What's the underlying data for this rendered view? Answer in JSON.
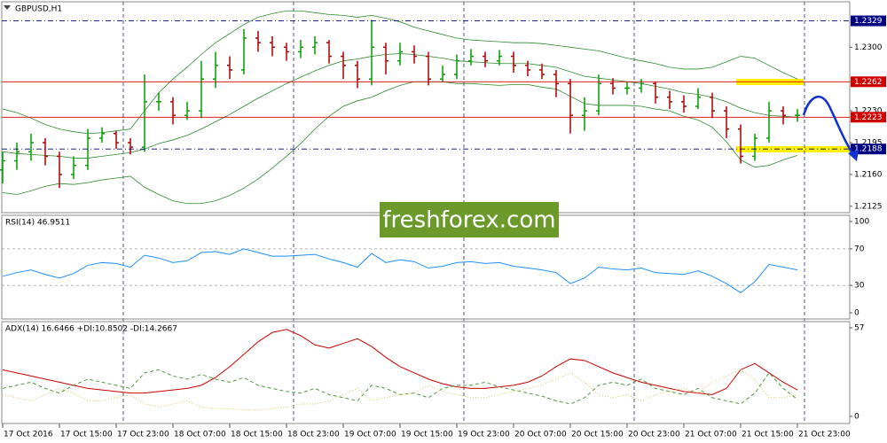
{
  "chart_data": [
    {
      "type": "candlestick",
      "title": "GBPUSD,H1",
      "categories": [
        "17 Oct 2016",
        null,
        null,
        null,
        "17 Oct 15:00",
        null,
        null,
        null,
        "17 Oct 23:00",
        null,
        null,
        null,
        "18 Oct 07:00",
        null,
        null,
        null,
        "18 Oct 15:00",
        null,
        null,
        null,
        "18 Oct 23:00",
        null,
        null,
        null,
        "19 Oct 07:00",
        null,
        null,
        null,
        "19 Oct 15:00",
        null,
        null,
        null,
        "19 Oct 23:00",
        null,
        null,
        null,
        "20 Oct 07:00",
        null,
        null,
        null,
        "20 Oct 15:00",
        null,
        null,
        null,
        "20 Oct 23:00",
        null,
        null,
        null,
        "21 Oct 07:00",
        null,
        null,
        null,
        "21 Oct 15:00",
        null,
        null,
        null,
        "21 Oct 23:00"
      ],
      "open": [
        1.2165,
        1.2175,
        1.2185,
        1.2195,
        1.218,
        1.216,
        1.217,
        1.22,
        1.2205,
        1.2195,
        1.219,
        1.224,
        1.224,
        1.2225,
        1.223,
        1.2265,
        1.228,
        1.2275,
        1.231,
        1.2305,
        1.23,
        1.2295,
        1.23,
        1.2305,
        1.229,
        1.228,
        1.2265,
        1.23,
        1.2285,
        1.2295,
        1.229,
        1.2265,
        1.227,
        1.2285,
        1.229,
        1.2285,
        1.229,
        1.228,
        1.2275,
        1.227,
        1.226,
        1.2225,
        1.223,
        1.226,
        1.2255,
        1.2255,
        1.226,
        1.2245,
        1.224,
        1.2235,
        1.2245,
        1.223,
        1.221,
        1.218,
        1.22,
        1.223,
        1.2225
      ],
      "high": [
        1.2185,
        1.2195,
        1.2205,
        1.22,
        1.2185,
        1.218,
        1.221,
        1.2212,
        1.2208,
        1.22,
        1.227,
        1.225,
        1.2245,
        1.224,
        1.2285,
        1.2295,
        1.229,
        1.232,
        1.2318,
        1.2312,
        1.2305,
        1.2308,
        1.2312,
        1.2308,
        1.2295,
        1.2285,
        1.233,
        1.2305,
        1.2305,
        1.2302,
        1.2295,
        1.228,
        1.2292,
        1.2298,
        1.2295,
        1.2297,
        1.2295,
        1.2285,
        1.2282,
        1.2275,
        1.2265,
        1.2245,
        1.227,
        1.2266,
        1.2262,
        1.2265,
        1.2262,
        1.2252,
        1.2247,
        1.2255,
        1.225,
        1.2235,
        1.2215,
        1.2205,
        1.224,
        1.2235,
        1.2232
      ],
      "low": [
        1.215,
        1.2165,
        1.2175,
        1.217,
        1.2145,
        1.2155,
        1.2165,
        1.2195,
        1.2188,
        1.2182,
        1.2185,
        1.223,
        1.2215,
        1.222,
        1.2222,
        1.2255,
        1.2265,
        1.227,
        1.2295,
        1.229,
        1.2285,
        1.2288,
        1.2292,
        1.2282,
        1.2265,
        1.2255,
        1.2258,
        1.227,
        1.228,
        1.2282,
        1.2258,
        1.2262,
        1.2265,
        1.228,
        1.2278,
        1.228,
        1.2272,
        1.2268,
        1.2265,
        1.2245,
        1.2205,
        1.2208,
        1.2225,
        1.2248,
        1.2248,
        1.225,
        1.2238,
        1.2232,
        1.2228,
        1.2232,
        1.2222,
        1.22,
        1.2172,
        1.2175,
        1.2195,
        1.2215,
        1.2218
      ],
      "close": [
        1.2175,
        1.2185,
        1.2195,
        1.218,
        1.216,
        1.217,
        1.22,
        1.2205,
        1.2195,
        1.219,
        1.224,
        1.224,
        1.2225,
        1.223,
        1.2265,
        1.228,
        1.2275,
        1.231,
        1.2305,
        1.23,
        1.2295,
        1.23,
        1.2305,
        1.229,
        1.228,
        1.2265,
        1.23,
        1.2285,
        1.2295,
        1.229,
        1.2265,
        1.227,
        1.2285,
        1.229,
        1.2285,
        1.229,
        1.228,
        1.2275,
        1.227,
        1.226,
        1.2225,
        1.223,
        1.226,
        1.2255,
        1.2255,
        1.226,
        1.2245,
        1.224,
        1.2235,
        1.2245,
        1.223,
        1.221,
        1.218,
        1.22,
        1.223,
        1.2225,
        1.2225
      ],
      "bands": [
        {
          "color": "#2e8b2e",
          "values": [
            1.2232,
            1.2228,
            1.2222,
            1.2215,
            1.221,
            1.2207,
            1.2205,
            1.2206,
            1.2208,
            1.221,
            1.223,
            1.225,
            1.2265,
            1.2278,
            1.2292,
            1.2305,
            1.2315,
            1.2325,
            1.2333,
            1.2337,
            1.234,
            1.234,
            1.2338,
            1.2336,
            1.2335,
            1.2333,
            1.2335,
            1.2332,
            1.2328,
            1.2322,
            1.2318,
            1.2314,
            1.231,
            1.2308,
            1.2307,
            1.2306,
            1.2305,
            1.2305,
            1.2304,
            1.2302,
            1.23,
            1.2298,
            1.2296,
            1.2292,
            1.2288,
            1.2285,
            1.2282,
            1.2278,
            1.2276,
            1.2276,
            1.2278,
            1.2284,
            1.229,
            1.2288,
            1.228,
            1.2272,
            1.2265
          ]
        },
        {
          "color": "#2e8b2e",
          "values": [
            1.2185,
            1.2183,
            1.2182,
            1.2181,
            1.218,
            1.2178,
            1.2178,
            1.218,
            1.2182,
            1.2184,
            1.2188,
            1.2194,
            1.2198,
            1.2203,
            1.221,
            1.2218,
            1.2226,
            1.2235,
            1.2244,
            1.2252,
            1.226,
            1.2267,
            1.2274,
            1.228,
            1.2285,
            1.2287,
            1.229,
            1.2292,
            1.2293,
            1.2292,
            1.229,
            1.2288,
            1.2285,
            1.2284,
            1.2283,
            1.2282,
            1.2282,
            1.2282,
            1.228,
            1.2278,
            1.2273,
            1.2268,
            1.2266,
            1.2264,
            1.2262,
            1.226,
            1.2257,
            1.2254,
            1.225,
            1.2248,
            1.2245,
            1.224,
            1.2233,
            1.2228,
            1.2225,
            1.2224,
            1.2223
          ]
        },
        {
          "color": "#2e8b2e",
          "values": [
            1.214,
            1.2138,
            1.2142,
            1.2147,
            1.215,
            1.2149,
            1.2151,
            1.2154,
            1.2156,
            1.2158,
            1.2146,
            1.2138,
            1.2131,
            1.2128,
            1.2128,
            1.2131,
            1.2137,
            1.2145,
            1.2155,
            1.2167,
            1.218,
            1.2194,
            1.221,
            1.2224,
            1.2235,
            1.2241,
            1.2245,
            1.2252,
            1.2258,
            1.2262,
            1.2262,
            1.2262,
            1.226,
            1.226,
            1.2259,
            1.2258,
            1.2259,
            1.2259,
            1.2256,
            1.2254,
            1.2246,
            1.2238,
            1.2236,
            1.2236,
            1.2236,
            1.2235,
            1.2232,
            1.223,
            1.2224,
            1.222,
            1.2212,
            1.2196,
            1.2176,
            1.2168,
            1.217,
            1.2176,
            1.2181
          ]
        }
      ],
      "up_color": "#00a000",
      "down_color": "#b00000",
      "ylim": [
        1.2118,
        1.235
      ],
      "yticks": [
        1.2125,
        {
          "value": 1.216,
          "label": "1.2160"
        },
        1.2195,
        {
          "value": 1.223,
          "label": "1.2230"
        },
        {
          "value": 1.23,
          "label": "1.2300"
        }
      ],
      "levels": [
        1.2329,
        1.2262,
        1.2223,
        1.2188
      ],
      "level_colors": [
        "#000080",
        "#d00000",
        "#d00000",
        "#000080"
      ],
      "level_styles": [
        "dashed",
        "solid",
        "solid",
        "dashed"
      ],
      "watermark": "freshforex.com"
    },
    {
      "type": "line",
      "title": "RSI(14) 46.9511",
      "series": [
        {
          "color": "#1e90ff",
          "style": "solid",
          "values": [
            40,
            44,
            47,
            42,
            38,
            43,
            52,
            55,
            54,
            50,
            63,
            60,
            55,
            57,
            66,
            67,
            64,
            70,
            66,
            62,
            62,
            63,
            64,
            59,
            55,
            50,
            65,
            55,
            58,
            56,
            49,
            51,
            55,
            56,
            54,
            55,
            51,
            49,
            47,
            44,
            32,
            38,
            50,
            48,
            47,
            49,
            44,
            43,
            42,
            46,
            40,
            32,
            22,
            34,
            53,
            50,
            47
          ]
        }
      ],
      "ylim": [
        -6.8,
        106.8
      ],
      "yticks": [
        0,
        30,
        70,
        100
      ],
      "level_lines": true
    },
    {
      "type": "line",
      "title": "ADX(14) 16.6466 +DI:10.8502 -DI:14.2667",
      "series": [
        {
          "color": "#cc0000",
          "style": "solid",
          "values": [
            30,
            28,
            26,
            24,
            22,
            20,
            18,
            17,
            16,
            15,
            15,
            16,
            17,
            18,
            20,
            25,
            32,
            40,
            48,
            54,
            56,
            52,
            46,
            44,
            47,
            50,
            45,
            38,
            32,
            28,
            24,
            21,
            19,
            18,
            18,
            19,
            20,
            22,
            26,
            32,
            37,
            36,
            32,
            28,
            25,
            22,
            20,
            18,
            16,
            15,
            14,
            18,
            30,
            34,
            28,
            22,
            17
          ]
        },
        {
          "color": "#4f9a3c",
          "style": "dashed",
          "values": [
            18,
            20,
            22,
            18,
            15,
            20,
            24,
            22,
            20,
            18,
            28,
            30,
            26,
            24,
            27,
            24,
            22,
            25,
            20,
            18,
            16,
            15,
            18,
            14,
            12,
            10,
            20,
            18,
            14,
            15,
            12,
            18,
            20,
            20,
            22,
            19,
            17,
            15,
            13,
            10,
            8,
            12,
            20,
            22,
            20,
            24,
            18,
            16,
            14,
            18,
            12,
            10,
            8,
            15,
            28,
            18,
            11
          ]
        },
        {
          "color": "#d8c860",
          "style": "dotted",
          "values": [
            14,
            12,
            10,
            14,
            18,
            15,
            10,
            10,
            12,
            14,
            8,
            6,
            8,
            10,
            6,
            5,
            5,
            4,
            4,
            5,
            6,
            8,
            8,
            10,
            14,
            18,
            10,
            12,
            14,
            15,
            20,
            16,
            14,
            12,
            12,
            14,
            16,
            18,
            20,
            24,
            28,
            22,
            14,
            12,
            14,
            10,
            14,
            16,
            18,
            15,
            22,
            26,
            30,
            24,
            12,
            12,
            14
          ]
        }
      ],
      "ylim": [
        -4.6,
        61
      ],
      "yticks": [
        0,
        57
      ],
      "level_lines": false
    }
  ]
}
